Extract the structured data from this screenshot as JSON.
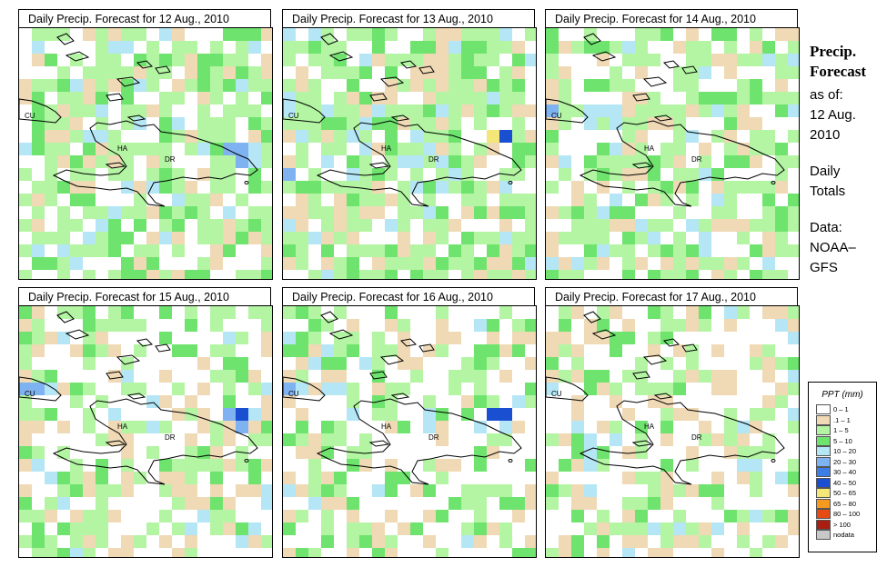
{
  "panels": [
    {
      "title": "Daily Precip. Forecast for  12 Aug., 2010",
      "seed": 12,
      "wet": 0.78,
      "hot": [
        [
          16,
          9,
          5
        ],
        [
          17,
          9,
          5
        ],
        [
          17,
          10,
          5
        ],
        [
          18,
          9,
          4
        ],
        [
          12,
          13,
          4
        ],
        [
          9,
          7,
          4
        ],
        [
          5,
          8,
          4
        ]
      ]
    },
    {
      "title": "Daily Precip. Forecast for  13 Aug., 2010",
      "seed": 13,
      "wet": 0.82,
      "hot": [
        [
          16,
          8,
          8
        ],
        [
          17,
          8,
          7
        ],
        [
          5,
          8,
          4
        ],
        [
          6,
          9,
          4
        ],
        [
          0,
          11,
          5
        ],
        [
          3,
          10,
          4
        ],
        [
          6,
          7,
          4
        ]
      ]
    },
    {
      "title": "Daily Precip. Forecast for  14 Aug., 2010",
      "seed": 14,
      "wet": 0.7,
      "hot": [
        [
          0,
          6,
          5
        ],
        [
          4,
          6,
          4
        ],
        [
          5,
          6,
          4
        ],
        [
          11,
          8,
          4
        ]
      ]
    },
    {
      "title": "Daily Precip. Forecast for  15 Aug., 2010",
      "seed": 15,
      "wet": 0.5,
      "hot": [
        [
          0,
          6,
          5
        ],
        [
          1,
          6,
          5
        ],
        [
          16,
          8,
          5
        ],
        [
          17,
          8,
          7
        ],
        [
          17,
          9,
          5
        ],
        [
          10,
          9,
          4
        ]
      ]
    },
    {
      "title": "Daily Precip. Forecast for  16 Aug., 2010",
      "seed": 16,
      "wet": 0.45,
      "hot": [
        [
          0,
          6,
          5
        ],
        [
          1,
          6,
          4
        ],
        [
          16,
          8,
          7
        ],
        [
          17,
          8,
          7
        ],
        [
          15,
          9,
          4
        ],
        [
          11,
          8,
          4
        ]
      ]
    },
    {
      "title": "Daily Precip. Forecast for  17 Aug., 2010",
      "seed": 17,
      "wet": 0.4,
      "hot": [
        [
          2,
          9,
          4
        ],
        [
          3,
          10,
          4
        ],
        [
          0,
          6,
          4
        ]
      ]
    }
  ],
  "map_labels": {
    "cuba": "CU",
    "haiti": "HA",
    "dominican_republic": "DR"
  },
  "side_panel": {
    "heading_line1": "Precip.",
    "heading_line2": "Forecast",
    "as_of_label": "as of:",
    "as_of_line1": "12 Aug.",
    "as_of_line2": "2010",
    "totals_line1": "Daily",
    "totals_line2": "Totals",
    "source_line1": "Data:",
    "source_line2": "NOAA–",
    "source_line3": "GFS"
  },
  "legend": {
    "title": "PPT (mm)",
    "items": [
      {
        "label": "0 – 1",
        "color": "#ffffff"
      },
      {
        "label": ".1 – 1",
        "color": "#f0d9b5"
      },
      {
        "label": "1 – 5",
        "color": "#b3f5a3"
      },
      {
        "label": "5 – 10",
        "color": "#6ee36e"
      },
      {
        "label": "10 – 20",
        "color": "#b4e6f5"
      },
      {
        "label": "20 – 30",
        "color": "#7fb2f0"
      },
      {
        "label": "30 – 40",
        "color": "#3c7ee6"
      },
      {
        "label": "40 – 50",
        "color": "#1a4fd1"
      },
      {
        "label": "50 – 65",
        "color": "#f5e678"
      },
      {
        "label": "65 – 80",
        "color": "#f59a1e"
      },
      {
        "label": "80 – 100",
        "color": "#e64b14"
      },
      {
        "label": "> 100",
        "color": "#aa1e0f"
      },
      {
        "label": "nodata",
        "color": "#c8c8c8"
      }
    ]
  }
}
